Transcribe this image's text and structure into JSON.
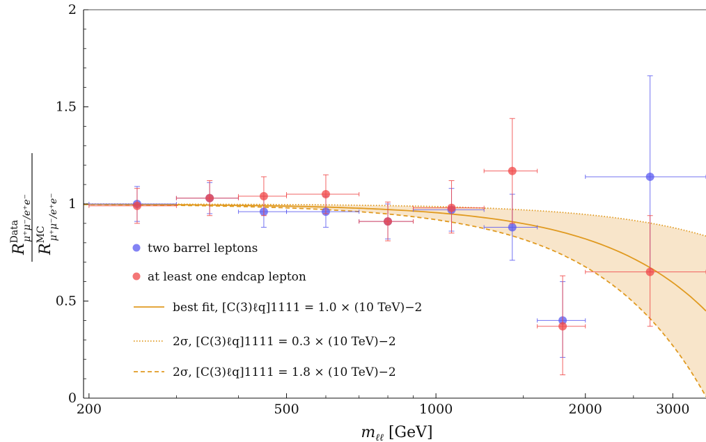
{
  "chart_data": {
    "type": "scatter",
    "xlabel": "m_ℓℓ [GeV]",
    "ylabel": "R^Data_μ+μ−/e+e− / R^MC_μ+μ−/e+e−",
    "x_scale": "log",
    "xlim": [
      195,
      3500
    ],
    "ylim": [
      0,
      2
    ],
    "x_ticks": [
      {
        "value": 200,
        "label": "200"
      },
      {
        "value": 500,
        "label": "500"
      },
      {
        "value": 1000,
        "label": "1000"
      },
      {
        "value": 2000,
        "label": "2000"
      },
      {
        "value": 3000,
        "label": "3000"
      }
    ],
    "y_ticks": [
      {
        "value": 0,
        "label": "0"
      },
      {
        "value": 0.5,
        "label": "0.5"
      },
      {
        "value": 1,
        "label": "1"
      },
      {
        "value": 1.5,
        "label": "1.5"
      },
      {
        "value": 2,
        "label": "2"
      }
    ],
    "series": [
      {
        "name": "two barrel leptons",
        "color": "#5a5af0",
        "points": [
          {
            "x": 250,
            "xlo": 200,
            "xhi": 300,
            "y": 1.0,
            "ylo": 0.91,
            "yhi": 1.09
          },
          {
            "x": 350,
            "xlo": 300,
            "xhi": 400,
            "y": 1.03,
            "ylo": 0.95,
            "yhi": 1.11
          },
          {
            "x": 450,
            "xlo": 400,
            "xhi": 500,
            "y": 0.96,
            "ylo": 0.88,
            "yhi": 1.04
          },
          {
            "x": 600,
            "xlo": 500,
            "xhi": 700,
            "y": 0.96,
            "ylo": 0.88,
            "yhi": 1.04
          },
          {
            "x": 800,
            "xlo": 700,
            "xhi": 900,
            "y": 0.91,
            "ylo": 0.82,
            "yhi": 1.0
          },
          {
            "x": 1075,
            "xlo": 900,
            "xhi": 1250,
            "y": 0.97,
            "ylo": 0.86,
            "yhi": 1.08
          },
          {
            "x": 1425,
            "xlo": 1250,
            "xhi": 1600,
            "y": 0.88,
            "ylo": 0.71,
            "yhi": 1.05
          },
          {
            "x": 1800,
            "xlo": 1600,
            "xhi": 2000,
            "y": 0.4,
            "ylo": 0.21,
            "yhi": 0.6
          },
          {
            "x": 2700,
            "xlo": 2000,
            "xhi": 3500,
            "y": 1.14,
            "ylo": 0.65,
            "yhi": 1.66
          }
        ]
      },
      {
        "name": "at least one endcap lepton",
        "color": "#f04848",
        "points": [
          {
            "x": 250,
            "xlo": 200,
            "xhi": 300,
            "y": 0.99,
            "ylo": 0.9,
            "yhi": 1.08
          },
          {
            "x": 350,
            "xlo": 300,
            "xhi": 400,
            "y": 1.03,
            "ylo": 0.94,
            "yhi": 1.12
          },
          {
            "x": 450,
            "xlo": 400,
            "xhi": 500,
            "y": 1.04,
            "ylo": 0.94,
            "yhi": 1.14
          },
          {
            "x": 600,
            "xlo": 500,
            "xhi": 700,
            "y": 1.05,
            "ylo": 0.95,
            "yhi": 1.15
          },
          {
            "x": 800,
            "xlo": 700,
            "xhi": 900,
            "y": 0.91,
            "ylo": 0.81,
            "yhi": 1.01
          },
          {
            "x": 1075,
            "xlo": 900,
            "xhi": 1250,
            "y": 0.98,
            "ylo": 0.85,
            "yhi": 1.12
          },
          {
            "x": 1425,
            "xlo": 1250,
            "xhi": 1600,
            "y": 1.17,
            "ylo": 0.9,
            "yhi": 1.44
          },
          {
            "x": 1800,
            "xlo": 1600,
            "xhi": 2000,
            "y": 0.37,
            "ylo": 0.12,
            "yhi": 0.63
          },
          {
            "x": 2700,
            "xlo": 2000,
            "xhi": 3500,
            "y": 0.65,
            "ylo": 0.37,
            "yhi": 0.94
          }
        ]
      }
    ],
    "curves": [
      {
        "name": "best fit",
        "coef": 1.0,
        "style": "solid",
        "color": "#e09a20"
      },
      {
        "name": "2σ",
        "coef": 0.3,
        "style": "dotted",
        "color": "#e09a20"
      },
      {
        "name": "2σ",
        "coef": 1.8,
        "style": "dashed",
        "color": "#e09a20"
      }
    ],
    "band": {
      "between_coefs": [
        0.3,
        1.8
      ],
      "color": "#f5dcb8"
    },
    "legend": {
      "placement": "bottom-left",
      "entries": [
        {
          "marker": "dot",
          "color": "#5a5af0",
          "text": "two barrel leptons"
        },
        {
          "marker": "dot",
          "color": "#f04848",
          "text": "at least one endcap lepton"
        },
        {
          "marker": "solid",
          "color": "#e09a20",
          "text": "best fit, [C(3)ℓq]1111 = 1.0 × (10 TeV)−2"
        },
        {
          "marker": "dotted",
          "color": "#e09a20",
          "text": "2σ, [C(3)ℓq]1111 = 0.3 × (10 TeV)−2"
        },
        {
          "marker": "dashed",
          "color": "#e09a20",
          "text": "2σ, [C(3)ℓq]1111 = 1.8 × (10 TeV)−2"
        }
      ]
    },
    "grid": false
  }
}
